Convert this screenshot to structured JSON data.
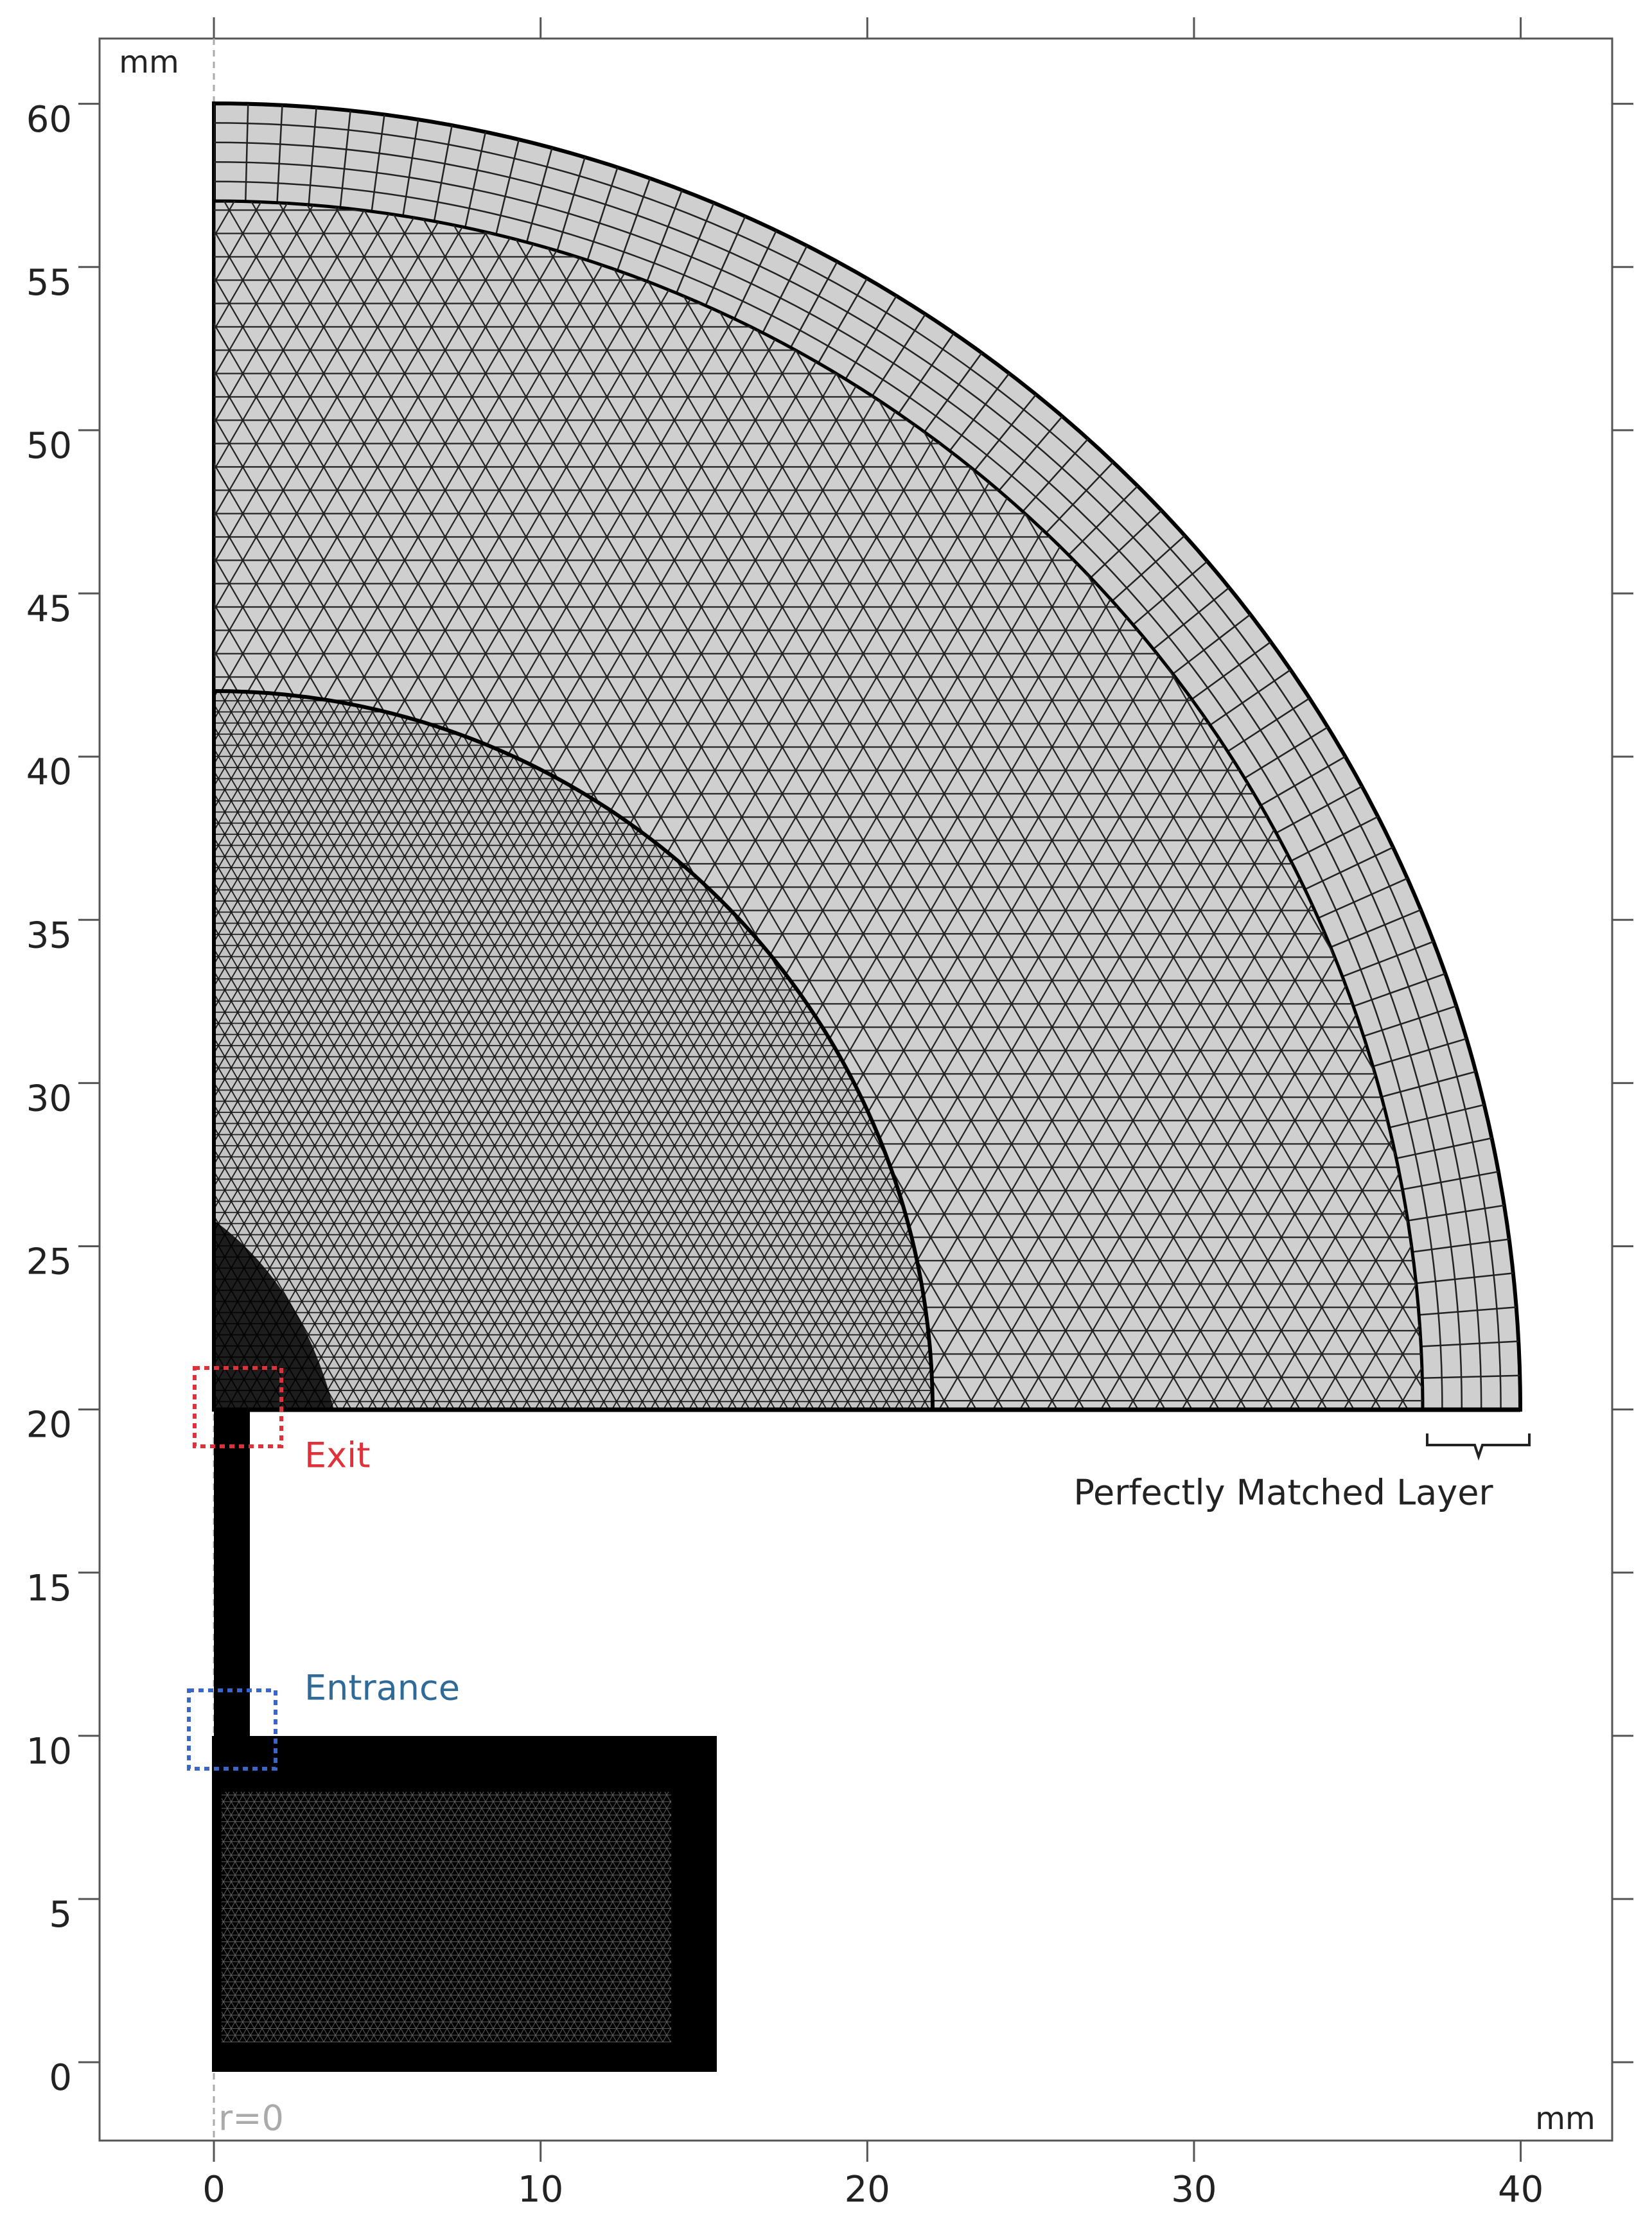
{
  "chart_data": {
    "type": "mesh",
    "x_unit": "mm",
    "y_unit": "mm",
    "xlim": [
      -3.5,
      42.8
    ],
    "ylim": [
      -2.4,
      62
    ],
    "xticks": [
      0,
      10,
      20,
      30,
      40
    ],
    "yticks": [
      0,
      5,
      10,
      15,
      20,
      25,
      30,
      35,
      40,
      45,
      50,
      55,
      60
    ],
    "annotations": [
      "r=0",
      "Exit",
      "Entrance",
      "Perfectly Matched Layer"
    ]
  }
}
